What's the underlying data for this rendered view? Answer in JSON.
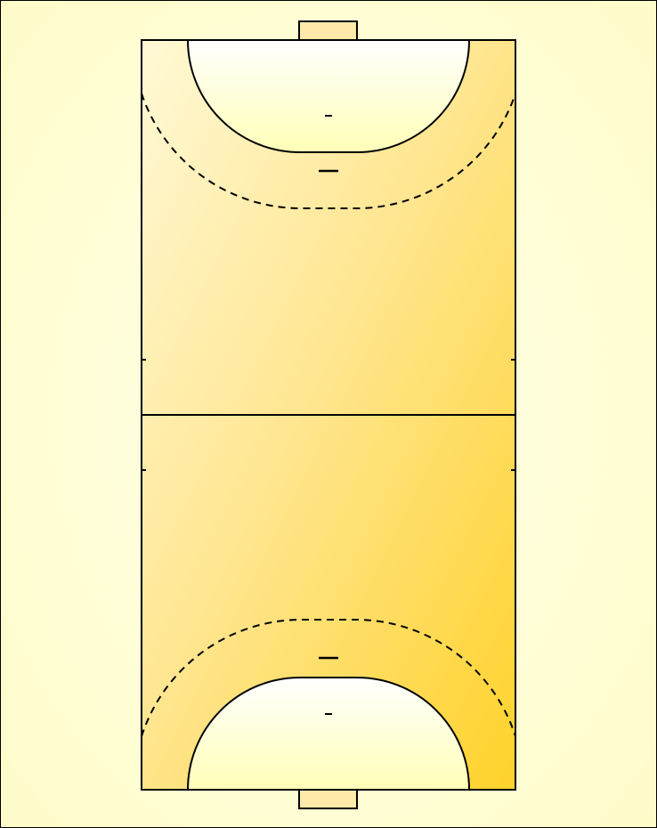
{
  "colors": {
    "background_light": "#ffffe8",
    "background_edge": "#fffcc8",
    "court_light": "#fff9d6",
    "court_mid": "#ffe692",
    "court_dark": "#ffd22a",
    "goal_area_top": "#ffffff",
    "goal_area_bottom": "#ffffb8",
    "goal_fill": "#ffe9a8",
    "line": "#000000",
    "frame": "#000000"
  },
  "court": {
    "orientation": "vertical",
    "sport_markings": [
      "goal",
      "goal-area-line",
      "free-throw-line",
      "penalty-mark",
      "goalkeeper-restraining-line",
      "center-line",
      "substitution-marks"
    ]
  }
}
